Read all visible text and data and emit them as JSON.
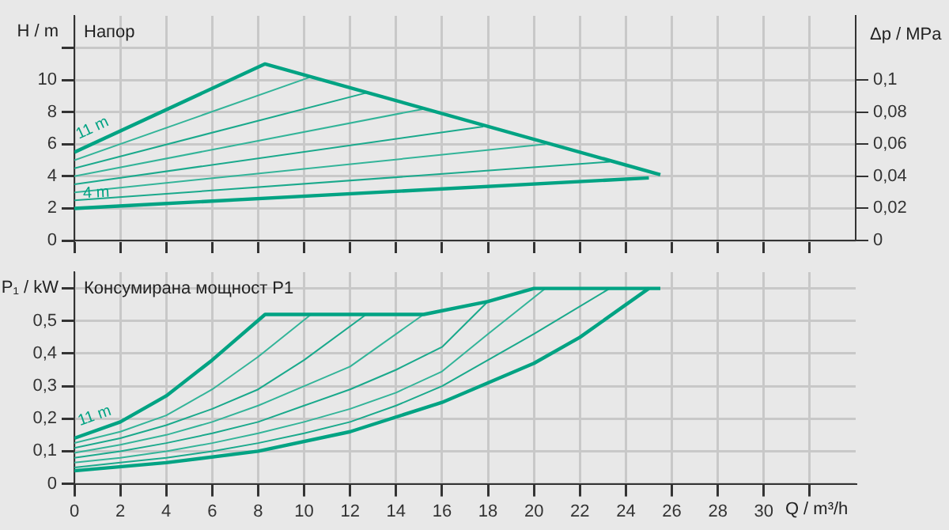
{
  "chart_data": [
    {
      "type": "line",
      "title": "Напор",
      "ylabel": "H / m",
      "y2label": "Δp / MPa",
      "xlim": [
        0,
        34
      ],
      "xticks": [
        0,
        2,
        4,
        6,
        8,
        10,
        12,
        14,
        16,
        18,
        20,
        22,
        24,
        26,
        28,
        30,
        {
          "value": 32,
          "label": null
        }
      ],
      "ylim": [
        0,
        14
      ],
      "yticks": [
        0,
        2,
        4,
        6,
        8,
        10,
        {
          "value": 12,
          "label": null
        }
      ],
      "y2lim": [
        0,
        0.14
      ],
      "y2ticks": [
        0,
        {
          "value": 0.02,
          "label": "0,02"
        },
        {
          "value": 0.04,
          "label": "0,04"
        },
        {
          "value": 0.06,
          "label": "0,06"
        },
        {
          "value": 0.08,
          "label": "0,08"
        },
        {
          "value": 0.1,
          "label": "0,1"
        }
      ],
      "grid": true,
      "tick_labels": "y",
      "legend": false,
      "marker": "none",
      "line_style": "solid",
      "series": [
        {
          "name": "11 m",
          "color": "#00a383",
          "x": [
            0,
            8.3,
            25.5
          ],
          "values": [
            5.5,
            11,
            4.1
          ]
        },
        {
          "color": "#33b499",
          "x": [
            0,
            10.3
          ],
          "values": [
            5,
            10.2
          ]
        },
        {
          "color": "#1aa98c",
          "x": [
            0,
            12.7
          ],
          "values": [
            4.5,
            9.2
          ]
        },
        {
          "color": "#33b499",
          "x": [
            0,
            15.2
          ],
          "values": [
            4,
            8.2
          ]
        },
        {
          "color": "#1aa98c",
          "x": [
            0,
            17.8
          ],
          "values": [
            3.5,
            7.1
          ]
        },
        {
          "color": "#33b499",
          "x": [
            0,
            20.5
          ],
          "values": [
            3,
            6
          ]
        },
        {
          "color": "#1aa98c",
          "x": [
            0,
            23.3
          ],
          "values": [
            2.5,
            4.9
          ]
        },
        {
          "name": "4 m",
          "color": "#00a383",
          "x": [
            0,
            25
          ],
          "values": [
            2,
            3.9
          ]
        }
      ]
    },
    {
      "type": "line",
      "title": "Консумирана мощност P1",
      "ylabel": "P₁ / kW",
      "xlabel": "Q / m³/h",
      "xlim": [
        0,
        34
      ],
      "xticks": [
        0,
        2,
        4,
        6,
        8,
        10,
        12,
        14,
        16,
        18,
        20,
        22,
        24,
        26,
        28,
        30,
        {
          "value": 32,
          "label": null
        }
      ],
      "ylim": [
        0,
        0.65
      ],
      "yticks": [
        0,
        {
          "value": 0.1,
          "label": "0,1"
        },
        {
          "value": 0.2,
          "label": "0,2"
        },
        {
          "value": 0.3,
          "label": "0,3"
        },
        {
          "value": 0.4,
          "label": "0,4"
        },
        {
          "value": 0.5,
          "label": "0,5"
        },
        {
          "value": 0.6,
          "label": null
        }
      ],
      "grid": true,
      "legend": false,
      "marker": "none",
      "line_style": "solid",
      "series": [
        {
          "name": "11 m",
          "color": "#00a383",
          "x": [
            0,
            2,
            4,
            6,
            8.3,
            15.2,
            18,
            20,
            25.5
          ],
          "values": [
            0.14,
            0.19,
            0.27,
            0.38,
            0.52,
            0.52,
            0.56,
            0.6,
            0.6
          ]
        },
        {
          "color": "#33b499",
          "x": [
            0,
            2,
            4,
            6,
            8,
            10.3
          ],
          "values": [
            0.125,
            0.16,
            0.21,
            0.29,
            0.39,
            0.52
          ]
        },
        {
          "color": "#1aa98c",
          "x": [
            0,
            2,
            4,
            6,
            8,
            10,
            12.7
          ],
          "values": [
            0.11,
            0.14,
            0.18,
            0.23,
            0.29,
            0.38,
            0.52
          ]
        },
        {
          "color": "#33b499",
          "x": [
            0,
            2,
            4,
            6,
            8,
            10,
            12,
            15.2
          ],
          "values": [
            0.095,
            0.12,
            0.15,
            0.19,
            0.24,
            0.3,
            0.36,
            0.52
          ]
        },
        {
          "color": "#1aa98c",
          "x": [
            0,
            2,
            4,
            6,
            8,
            10,
            12,
            14,
            16,
            18
          ],
          "values": [
            0.08,
            0.1,
            0.125,
            0.155,
            0.19,
            0.24,
            0.29,
            0.35,
            0.42,
            0.56
          ]
        },
        {
          "color": "#33b499",
          "x": [
            0,
            2,
            4,
            6,
            8,
            10,
            12,
            14,
            16,
            18,
            20.5
          ],
          "values": [
            0.065,
            0.08,
            0.1,
            0.125,
            0.155,
            0.19,
            0.23,
            0.28,
            0.345,
            0.46,
            0.6
          ]
        },
        {
          "color": "#1aa98c",
          "x": [
            0,
            2,
            4,
            6,
            8,
            10,
            12,
            14,
            16,
            18,
            20,
            23.3
          ],
          "values": [
            0.05,
            0.065,
            0.08,
            0.1,
            0.125,
            0.155,
            0.19,
            0.24,
            0.3,
            0.38,
            0.46,
            0.6
          ]
        },
        {
          "color": "#00a383",
          "x": [
            0,
            4,
            8,
            12,
            16,
            20,
            22,
            24,
            25
          ],
          "values": [
            0.04,
            0.065,
            0.1,
            0.16,
            0.25,
            0.37,
            0.45,
            0.55,
            0.6
          ]
        }
      ]
    }
  ]
}
